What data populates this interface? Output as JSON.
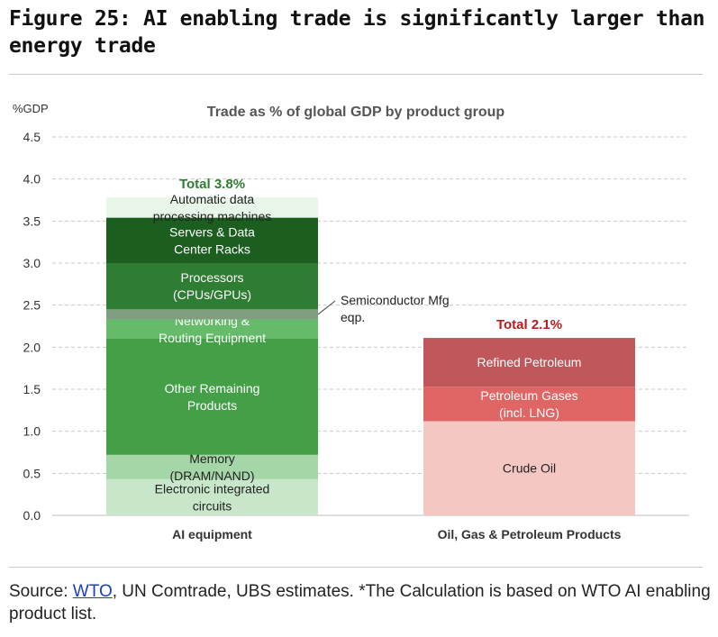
{
  "figure": {
    "title": "Figure 25: AI enabling trade is significantly larger than energy trade"
  },
  "source": {
    "prefix": "Source: ",
    "link_text": "WTO",
    "rest": ", UN Comtrade, UBS estimates. *The Calculation is based on WTO AI enabling product list."
  },
  "chart_data": {
    "type": "bar",
    "stacked": true,
    "title": "Trade as % of global GDP by product group",
    "ylabel": "%GDP",
    "ylim": [
      0,
      4.5
    ],
    "yticks": [
      "0.0",
      "0.5",
      "1.0",
      "1.5",
      "2.0",
      "2.5",
      "3.0",
      "3.5",
      "4.0",
      "4.5"
    ],
    "grid": true,
    "categories": [
      "AI equipment",
      "Oil, Gas & Petroleum Products"
    ],
    "stacks": [
      {
        "category": "AI equipment",
        "total_label": "Total 3.8%",
        "total_color": "#2e7d32",
        "segments": [
          {
            "label": [
              "Electronic integrated",
              "circuits"
            ],
            "value": 0.43,
            "color": "#c8e6c9"
          },
          {
            "label": [
              "Memory",
              "(DRAM/NAND)"
            ],
            "value": 0.29,
            "color": "#a5d6a7"
          },
          {
            "label": [
              "Other Remaining",
              "Products"
            ],
            "value": 1.38,
            "color": "#43a047"
          },
          {
            "label": [
              "Networking &",
              "Routing Equipment"
            ],
            "value": 0.23,
            "color": "#66bb6a"
          },
          {
            "label": [],
            "value": 0.12,
            "color": "#7f9e7f"
          },
          {
            "label": [
              "Processors",
              "(CPUs/GPUs)"
            ],
            "value": 0.55,
            "color": "#2e7d32"
          },
          {
            "label": [
              "Servers & Data",
              "Center Racks"
            ],
            "value": 0.54,
            "color": "#1b5e20"
          },
          {
            "label": [
              "Automatic data",
              "processing machines"
            ],
            "value": 0.24,
            "color": "#e8f5e9"
          }
        ]
      },
      {
        "category": "Oil, Gas & Petroleum Products",
        "total_label": "Total 2.1%",
        "total_color": "#b71c1c",
        "segments": [
          {
            "label": [
              "Crude Oil"
            ],
            "value": 1.12,
            "color": "#f4c7c3"
          },
          {
            "label": [
              "Petroleum Gases",
              "(incl. LNG)"
            ],
            "value": 0.41,
            "color": "#e06666"
          },
          {
            "label": [
              "Refined Petroleum"
            ],
            "value": 0.58,
            "color": "#c0585b"
          }
        ]
      }
    ],
    "annotations": [
      {
        "text": [
          "Semiconductor Mfg",
          "eqp."
        ],
        "points_to": "AI equipment segment between Networking & Routing Equipment and Processors"
      }
    ]
  }
}
